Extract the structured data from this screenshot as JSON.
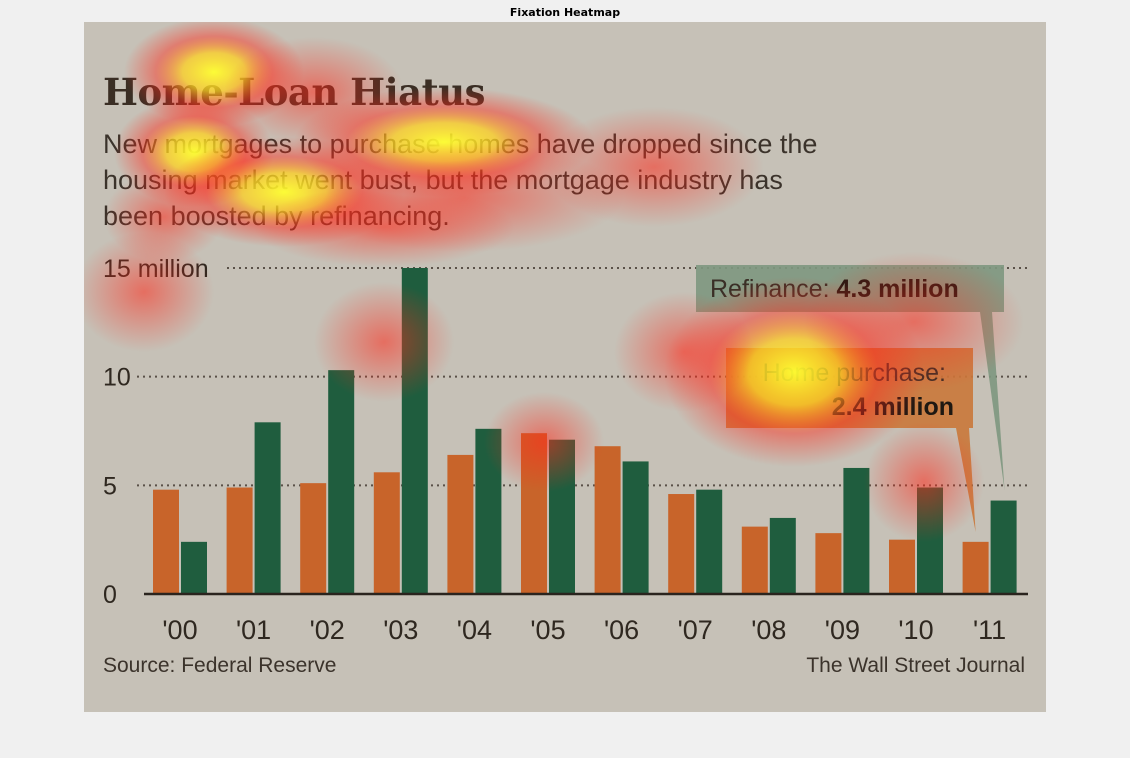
{
  "figure": {
    "title": "Fixation Heatmap"
  },
  "chart_data": {
    "type": "bar",
    "title": "Home-Loan Hiatus",
    "subtitle": "New mortgages to purchase homes have dropped since the housing market went bust, but the mortgage industry has been boosted by refinancing.",
    "categories": [
      "'00",
      "'01",
      "'02",
      "'03",
      "'04",
      "'05",
      "'06",
      "'07",
      "'08",
      "'09",
      "'10",
      "'11"
    ],
    "series": [
      {
        "name": "Home purchase",
        "color": "#c8642a",
        "values": [
          4.8,
          4.9,
          5.1,
          5.6,
          6.4,
          7.4,
          6.8,
          4.6,
          3.1,
          2.8,
          2.5,
          2.4
        ]
      },
      {
        "name": "Refinance",
        "color": "#1f5d3e",
        "values": [
          2.4,
          7.9,
          10.3,
          15.0,
          7.6,
          7.1,
          6.1,
          4.8,
          3.5,
          5.8,
          4.9,
          4.3
        ]
      }
    ],
    "ylim": [
      0,
      15
    ],
    "yticks": [
      0,
      5,
      10,
      15
    ],
    "ytick_labels": [
      "0",
      "5",
      "10",
      "15 million"
    ],
    "grid": "dotted",
    "annotations": [
      {
        "series": "Refinance",
        "label_prefix": "Refinance: ",
        "label_value": "4.3 million",
        "color": "#7f9880"
      },
      {
        "series": "Home purchase",
        "label_prefix": "Home purchase:",
        "label_value": "2.4 million",
        "color": "#c97a3c"
      }
    ],
    "source": "Source: Federal Reserve",
    "credit": "The Wall Street Journal"
  }
}
